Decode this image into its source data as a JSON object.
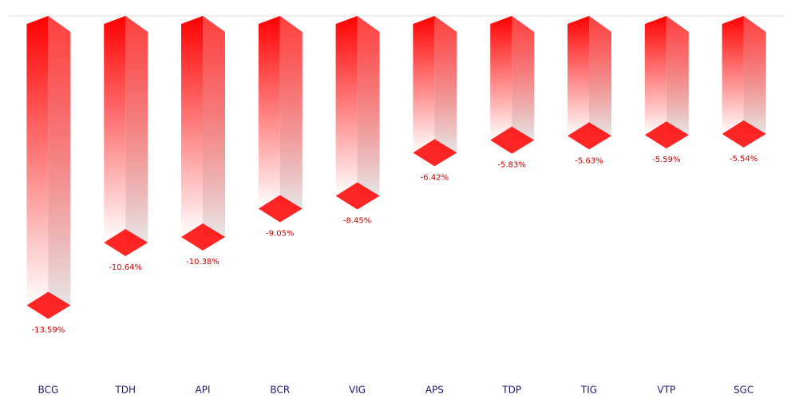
{
  "chart_data": {
    "type": "bar3d",
    "categories": [
      "BCG",
      "TDH",
      "API",
      "BCR",
      "VIG",
      "APS",
      "TDP",
      "TIG",
      "VTP",
      "SGC"
    ],
    "values": [
      -13.59,
      -10.64,
      -10.38,
      -9.05,
      -8.45,
      -6.42,
      -5.83,
      -5.63,
      -5.59,
      -5.54
    ],
    "value_labels": [
      "-13.59%",
      "-10.64%",
      "-10.38%",
      "-9.05%",
      "-8.45%",
      "-6.42%",
      "-5.83%",
      "-5.63%",
      "-5.59%",
      "-5.54%"
    ],
    "color": "#ff0000",
    "ylim": [
      -16,
      0
    ]
  }
}
